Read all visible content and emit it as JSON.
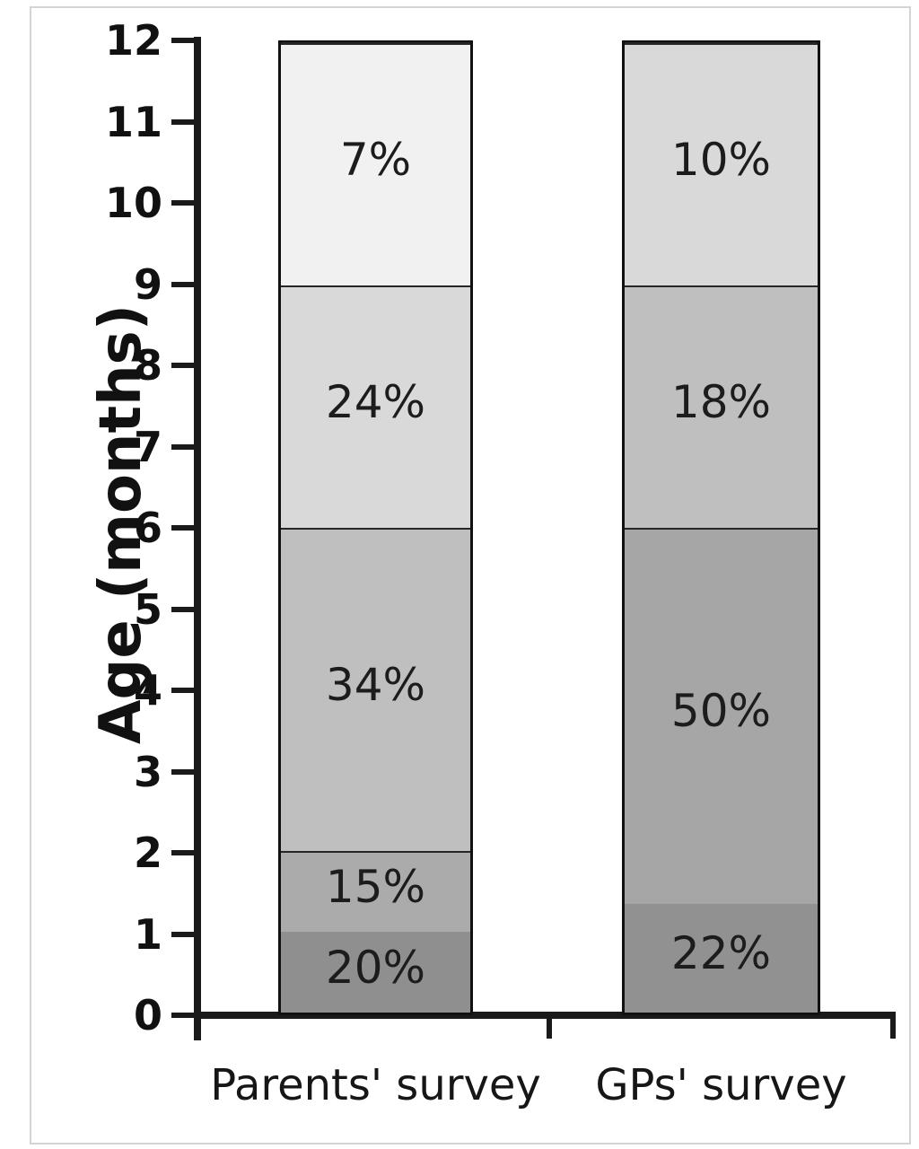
{
  "chart_data": {
    "type": "bar",
    "stacked": true,
    "title": "",
    "xlabel": "",
    "ylabel": "Age (months)",
    "ylim": [
      0,
      12
    ],
    "yticks": [
      0,
      1,
      2,
      3,
      4,
      5,
      6,
      7,
      8,
      9,
      10,
      11,
      12
    ],
    "grid": false,
    "legend_position": "none",
    "axis_color": "#1a1a1a",
    "categories": [
      "Parents' survey",
      "GPs' survey"
    ],
    "bars": [
      {
        "category": "Parents' survey",
        "segments": [
          {
            "label": "20%",
            "value": 20,
            "age_from": 0,
            "age_to": 1,
            "color": "#8f8f8f"
          },
          {
            "label": "15%",
            "value": 15,
            "age_from": 1,
            "age_to": 2,
            "color": "#ababab"
          },
          {
            "label": "34%",
            "value": 34,
            "age_from": 2,
            "age_to": 6,
            "color": "#bfbfbf"
          },
          {
            "label": "24%",
            "value": 24,
            "age_from": 6,
            "age_to": 9,
            "color": "#d9d9d9"
          },
          {
            "label": "7%",
            "value": 7,
            "age_from": 9,
            "age_to": 12,
            "color": "#f1f1f1"
          }
        ]
      },
      {
        "category": "GPs' survey",
        "segments": [
          {
            "label": "22%",
            "value": 22,
            "age_from": 0,
            "age_to": 1.35,
            "color": "#919191"
          },
          {
            "label": "50%",
            "value": 50,
            "age_from": 1.35,
            "age_to": 6,
            "color": "#a6a6a6"
          },
          {
            "label": "18%",
            "value": 18,
            "age_from": 6,
            "age_to": 9,
            "color": "#bfbfbf"
          },
          {
            "label": "10%",
            "value": 10,
            "age_from": 9,
            "age_to": 12,
            "color": "#d9d9d9"
          }
        ]
      }
    ]
  }
}
